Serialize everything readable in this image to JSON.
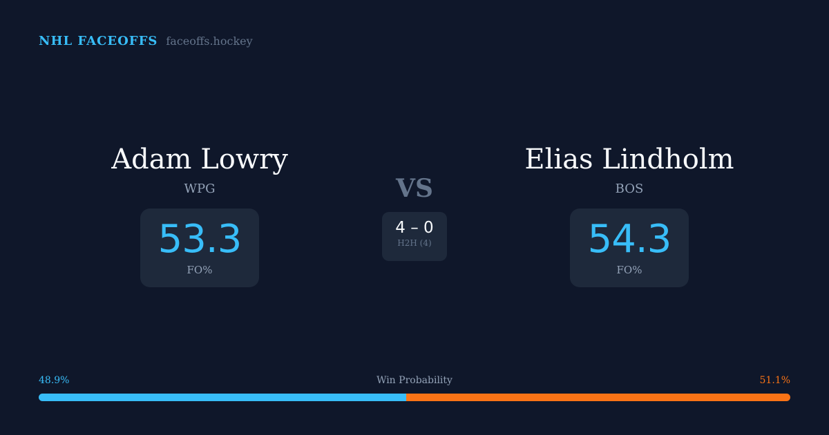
{
  "brand": {
    "title": "NHL FACEOFFS",
    "url": "faceoffs.hockey"
  },
  "left": {
    "name": "Adam Lowry",
    "team": "WPG",
    "fo_pct": "53.3",
    "fo_label": "FO%"
  },
  "right": {
    "name": "Elias Lindholm",
    "team": "BOS",
    "fo_pct": "54.3",
    "fo_label": "FO%"
  },
  "vs": "VS",
  "h2h": {
    "score": "4 – 0",
    "caption": "H2H (4)"
  },
  "win_probability": {
    "label": "Win Probability",
    "left_text": "48.9%",
    "right_text": "51.1%",
    "left": 48.9,
    "right": 51.1,
    "left_color": "#38bdf8",
    "right_color": "#f97316"
  }
}
